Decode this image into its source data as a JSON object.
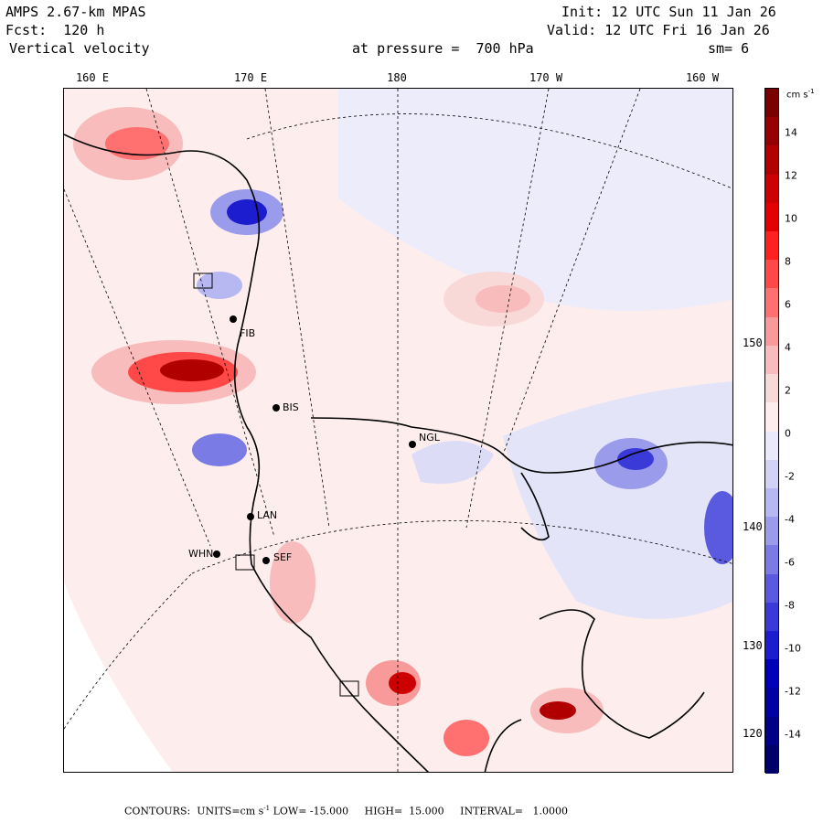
{
  "header": {
    "model": "AMPS 2.67-km MPAS",
    "forecast": "Fcst:  120 h",
    "field": "Vertical velocity",
    "init": "Init: 12 UTC Sun 11 Jan 26",
    "valid": "Valid: 12 UTC Fri 16 Jan 26",
    "pressure": "at pressure =  700 hPa",
    "smoothing": "sm= 6"
  },
  "longitude_labels": [
    "160 E",
    "170 E",
    "180",
    "170 W",
    "160 W"
  ],
  "latitude_labels": [
    "150 W",
    "140 W",
    "130 W",
    "120 W"
  ],
  "colorbar": {
    "units": "cm s",
    "units_exp": "-1",
    "ticks": [
      "14",
      "12",
      "10",
      "8",
      "6",
      "4",
      "2",
      "0",
      "-2",
      "-4",
      "-6",
      "-8",
      "-10",
      "-12",
      "-14"
    ],
    "colors": [
      "#7a0000",
      "#950000",
      "#b00000",
      "#cc0000",
      "#e30000",
      "#ff2020",
      "#ff4848",
      "#ff7070",
      "#f99a9a",
      "#f8bcbc",
      "#f9d8d8",
      "#fdeded",
      "#e9e9fb",
      "#d2d2f6",
      "#b7b7f1",
      "#9b9bec",
      "#7b7be6",
      "#5a5ae0",
      "#3a3ad8",
      "#1d1dd0",
      "#0000b8",
      "#0000a0",
      "#000086",
      "#00006a"
    ]
  },
  "stations": [
    "BIS",
    "NGL",
    "LAN",
    "WHN",
    "SEF",
    "FIB"
  ],
  "footer": {
    "contours": "CONTOURS:  UNITS=cm s",
    "exp": "-1",
    "rest": " LOW= -15.000     HIGH=  15.000     INTERVAL=   1.0000"
  }
}
